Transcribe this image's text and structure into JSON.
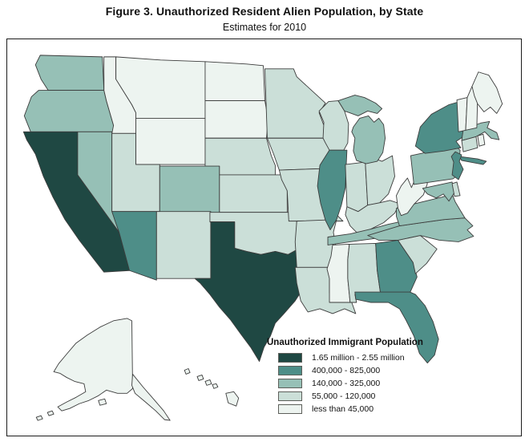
{
  "figure": {
    "title": "Figure 3. Unauthorized Resident Alien Population, by State",
    "subtitle": "Estimates for 2010"
  },
  "legend": {
    "title": "Unauthorized Immigrant Population",
    "items": [
      {
        "label": "1.65 million - 2.55 million",
        "color": "#1f4843"
      },
      {
        "label": "400,000 - 825,000",
        "color": "#4e8e88"
      },
      {
        "label": "140,000 - 325,000",
        "color": "#96c0b6"
      },
      {
        "label": "55,000 - 120,000",
        "color": "#cbdfd8"
      },
      {
        "label": "less than 45,000",
        "color": "#edf4f0"
      }
    ],
    "swatch_border_color": "#5d5f5a"
  },
  "map": {
    "background_color": "#ffffff",
    "state_border_color": "#3c3c3c",
    "frame_color": "#1c1c1c",
    "state_categories": {
      "CA": 0,
      "TX": 0,
      "AZ": 1,
      "IL": 1,
      "NY": 1,
      "NJ": 1,
      "GA": 1,
      "FL": 1,
      "WA": 2,
      "OR": 2,
      "NV": 2,
      "CO": 2,
      "MI": 2,
      "PA": 2,
      "MD": 2,
      "VA": 2,
      "NC": 2,
      "TN": 2,
      "MA": 2,
      "NM": 3,
      "UT": 3,
      "OK": 3,
      "KS": 3,
      "NE": 3,
      "MN": 3,
      "WI": 3,
      "IA": 3,
      "MO": 3,
      "AR": 3,
      "LA": 3,
      "AL": 3,
      "SC": 3,
      "IN": 3,
      "OH": 3,
      "KY": 3,
      "CT": 3,
      "DE": 3,
      "MT": 4,
      "ID": 4,
      "WY": 4,
      "ND": 4,
      "SD": 4,
      "MS": 4,
      "WV": 4,
      "VT": 4,
      "NH": 4,
      "ME": 4,
      "RI": 4,
      "AK": 4,
      "HI": 4
    }
  },
  "chart_data": {
    "type": "heatmap",
    "subtype": "choropleth_us_states",
    "title": "Figure 3. Unauthorized Resident Alien Population, by State",
    "subtitle": "Estimates for 2010",
    "legend_title": "Unauthorized Immigrant Population",
    "legend_position": "bottom-right inside map frame",
    "classes": [
      {
        "range_label": "1.65 million - 2.55 million",
        "color": "#1f4843",
        "states": [
          "CA",
          "TX"
        ]
      },
      {
        "range_label": "400,000 - 825,000",
        "color": "#4e8e88",
        "states": [
          "AZ",
          "IL",
          "NY",
          "NJ",
          "GA",
          "FL"
        ]
      },
      {
        "range_label": "140,000 - 325,000",
        "color": "#96c0b6",
        "states": [
          "WA",
          "OR",
          "NV",
          "CO",
          "MI",
          "PA",
          "MD",
          "VA",
          "NC",
          "TN",
          "MA"
        ]
      },
      {
        "range_label": "55,000 - 120,000",
        "color": "#cbdfd8",
        "states": [
          "NM",
          "UT",
          "OK",
          "KS",
          "NE",
          "MN",
          "WI",
          "IA",
          "MO",
          "AR",
          "LA",
          "AL",
          "SC",
          "IN",
          "OH",
          "KY",
          "CT",
          "DE"
        ]
      },
      {
        "range_label": "less than 45,000",
        "color": "#edf4f0",
        "states": [
          "MT",
          "ID",
          "WY",
          "ND",
          "SD",
          "MS",
          "WV",
          "VT",
          "NH",
          "ME",
          "RI",
          "AK",
          "HI"
        ]
      }
    ]
  }
}
